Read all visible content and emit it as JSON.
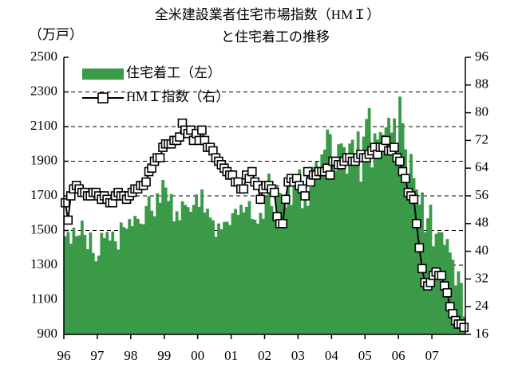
{
  "chart_data": {
    "type": "bar-line",
    "title": [
      "全米建設業者住宅市場指数（HMＩ）",
      "と住宅着工の推移"
    ],
    "y_label": "（万戸）",
    "categories": [
      "96",
      null,
      null,
      null,
      null,
      null,
      null,
      null,
      null,
      null,
      null,
      null,
      "97",
      null,
      null,
      null,
      null,
      null,
      null,
      null,
      null,
      null,
      null,
      null,
      "98",
      null,
      null,
      null,
      null,
      null,
      null,
      null,
      null,
      null,
      null,
      null,
      "99",
      null,
      null,
      null,
      null,
      null,
      null,
      null,
      null,
      null,
      null,
      null,
      "00",
      null,
      null,
      null,
      null,
      null,
      null,
      null,
      null,
      null,
      null,
      null,
      "01",
      null,
      null,
      null,
      null,
      null,
      null,
      null,
      null,
      null,
      null,
      null,
      "02",
      null,
      null,
      null,
      null,
      null,
      null,
      null,
      null,
      null,
      null,
      null,
      "03",
      null,
      null,
      null,
      null,
      null,
      null,
      null,
      null,
      null,
      null,
      null,
      "04",
      null,
      null,
      null,
      null,
      null,
      null,
      null,
      null,
      null,
      null,
      null,
      "05",
      null,
      null,
      null,
      null,
      null,
      null,
      null,
      null,
      null,
      null,
      null,
      "06",
      null,
      null,
      null,
      null,
      null,
      null,
      null,
      null,
      null,
      null,
      null,
      "07",
      null,
      null,
      null,
      null,
      null,
      null,
      null,
      null,
      null,
      null,
      null
    ],
    "series": [
      {
        "name": "住宅着工（左）",
        "type": "bar",
        "axis": "y",
        "color": "#3a9a48",
        "values": [
          1467,
          1491,
          1424,
          1516,
          1467,
          1472,
          1557,
          1475,
          1392,
          1489,
          1370,
          1322,
          1355,
          1486,
          1457,
          1492,
          1442,
          1494,
          1437,
          1390,
          1546,
          1520,
          1510,
          1566,
          1525,
          1584,
          1567,
          1540,
          1536,
          1641,
          1698,
          1614,
          1582,
          1715,
          1660,
          1792,
          1748,
          1670,
          1710,
          1553,
          1611,
          1559,
          1669,
          1648,
          1635,
          1608,
          1648,
          1708,
          1636,
          1737,
          1604,
          1626,
          1575,
          1559,
          1463,
          1541,
          1507,
          1549,
          1551,
          1532,
          1600,
          1625,
          1590,
          1649,
          1605,
          1636,
          1670,
          1567,
          1562,
          1540,
          1602,
          1568,
          1698,
          1829,
          1642,
          1592,
          1764,
          1717,
          1655,
          1633,
          1804,
          1648,
          1753,
          1788,
          1853,
          1629,
          1726,
          1643,
          1751,
          1867,
          1897,
          1833,
          1939,
          1967,
          2083,
          2057,
          1911,
          1846,
          1998,
          2003,
          1981,
          1828,
          2002,
          2024,
          1905,
          2072,
          1782,
          2042,
          2144,
          2207,
          1864,
          2061,
          2025,
          2068,
          2054,
          2095,
          2151,
          2065,
          2147,
          1994,
          2273,
          2119,
          1969,
          1821,
          1942,
          1802,
          1737,
          1650,
          1720,
          1491,
          1570,
          1649,
          1409,
          1480,
          1491,
          1490,
          1417,
          1451,
          1373,
          1331,
          1183,
          1264,
          1197,
          1004
        ]
      },
      {
        "name": "HMＩ指数（右）",
        "type": "line",
        "axis": "y2",
        "color": "#000000",
        "values": [
          54,
          49,
          56,
          58,
          59,
          58,
          57,
          57,
          56,
          56,
          57,
          57,
          56,
          55,
          56,
          55,
          54,
          54,
          56,
          57,
          56,
          56,
          55,
          56,
          57,
          58,
          58,
          59,
          59,
          60,
          63,
          64,
          66,
          67,
          67,
          70,
          71,
          71,
          71,
          72,
          72,
          73,
          77,
          75,
          74,
          75,
          72,
          74,
          72,
          75,
          72,
          70,
          70,
          69,
          67,
          66,
          65,
          64,
          63,
          62,
          62,
          60,
          60,
          58,
          58,
          62,
          61,
          63,
          60,
          59,
          55,
          58,
          59,
          59,
          58,
          57,
          50,
          48,
          48,
          55,
          60,
          61,
          60,
          61,
          59,
          58,
          56,
          63,
          60,
          62,
          62,
          63,
          63,
          63,
          64,
          62,
          66,
          66,
          65,
          65,
          66,
          67,
          67,
          66,
          66,
          67,
          68,
          67,
          67,
          68,
          69,
          70,
          68,
          70,
          70,
          72,
          69,
          69,
          70,
          67,
          66,
          63,
          61,
          57,
          56,
          55,
          48,
          41,
          35,
          31,
          30,
          31,
          33,
          34,
          33,
          33,
          30,
          28,
          24,
          22,
          20,
          19,
          19,
          18
        ]
      }
    ],
    "ylim": [
      900,
      2500
    ],
    "yticks": [
      900,
      1100,
      1300,
      1500,
      1700,
      1900,
      2100,
      2300,
      2500
    ],
    "y2lim": [
      16,
      96
    ],
    "y2ticks": [
      16,
      24,
      32,
      40,
      48,
      56,
      64,
      72,
      80,
      88,
      96
    ],
    "grid": true
  }
}
